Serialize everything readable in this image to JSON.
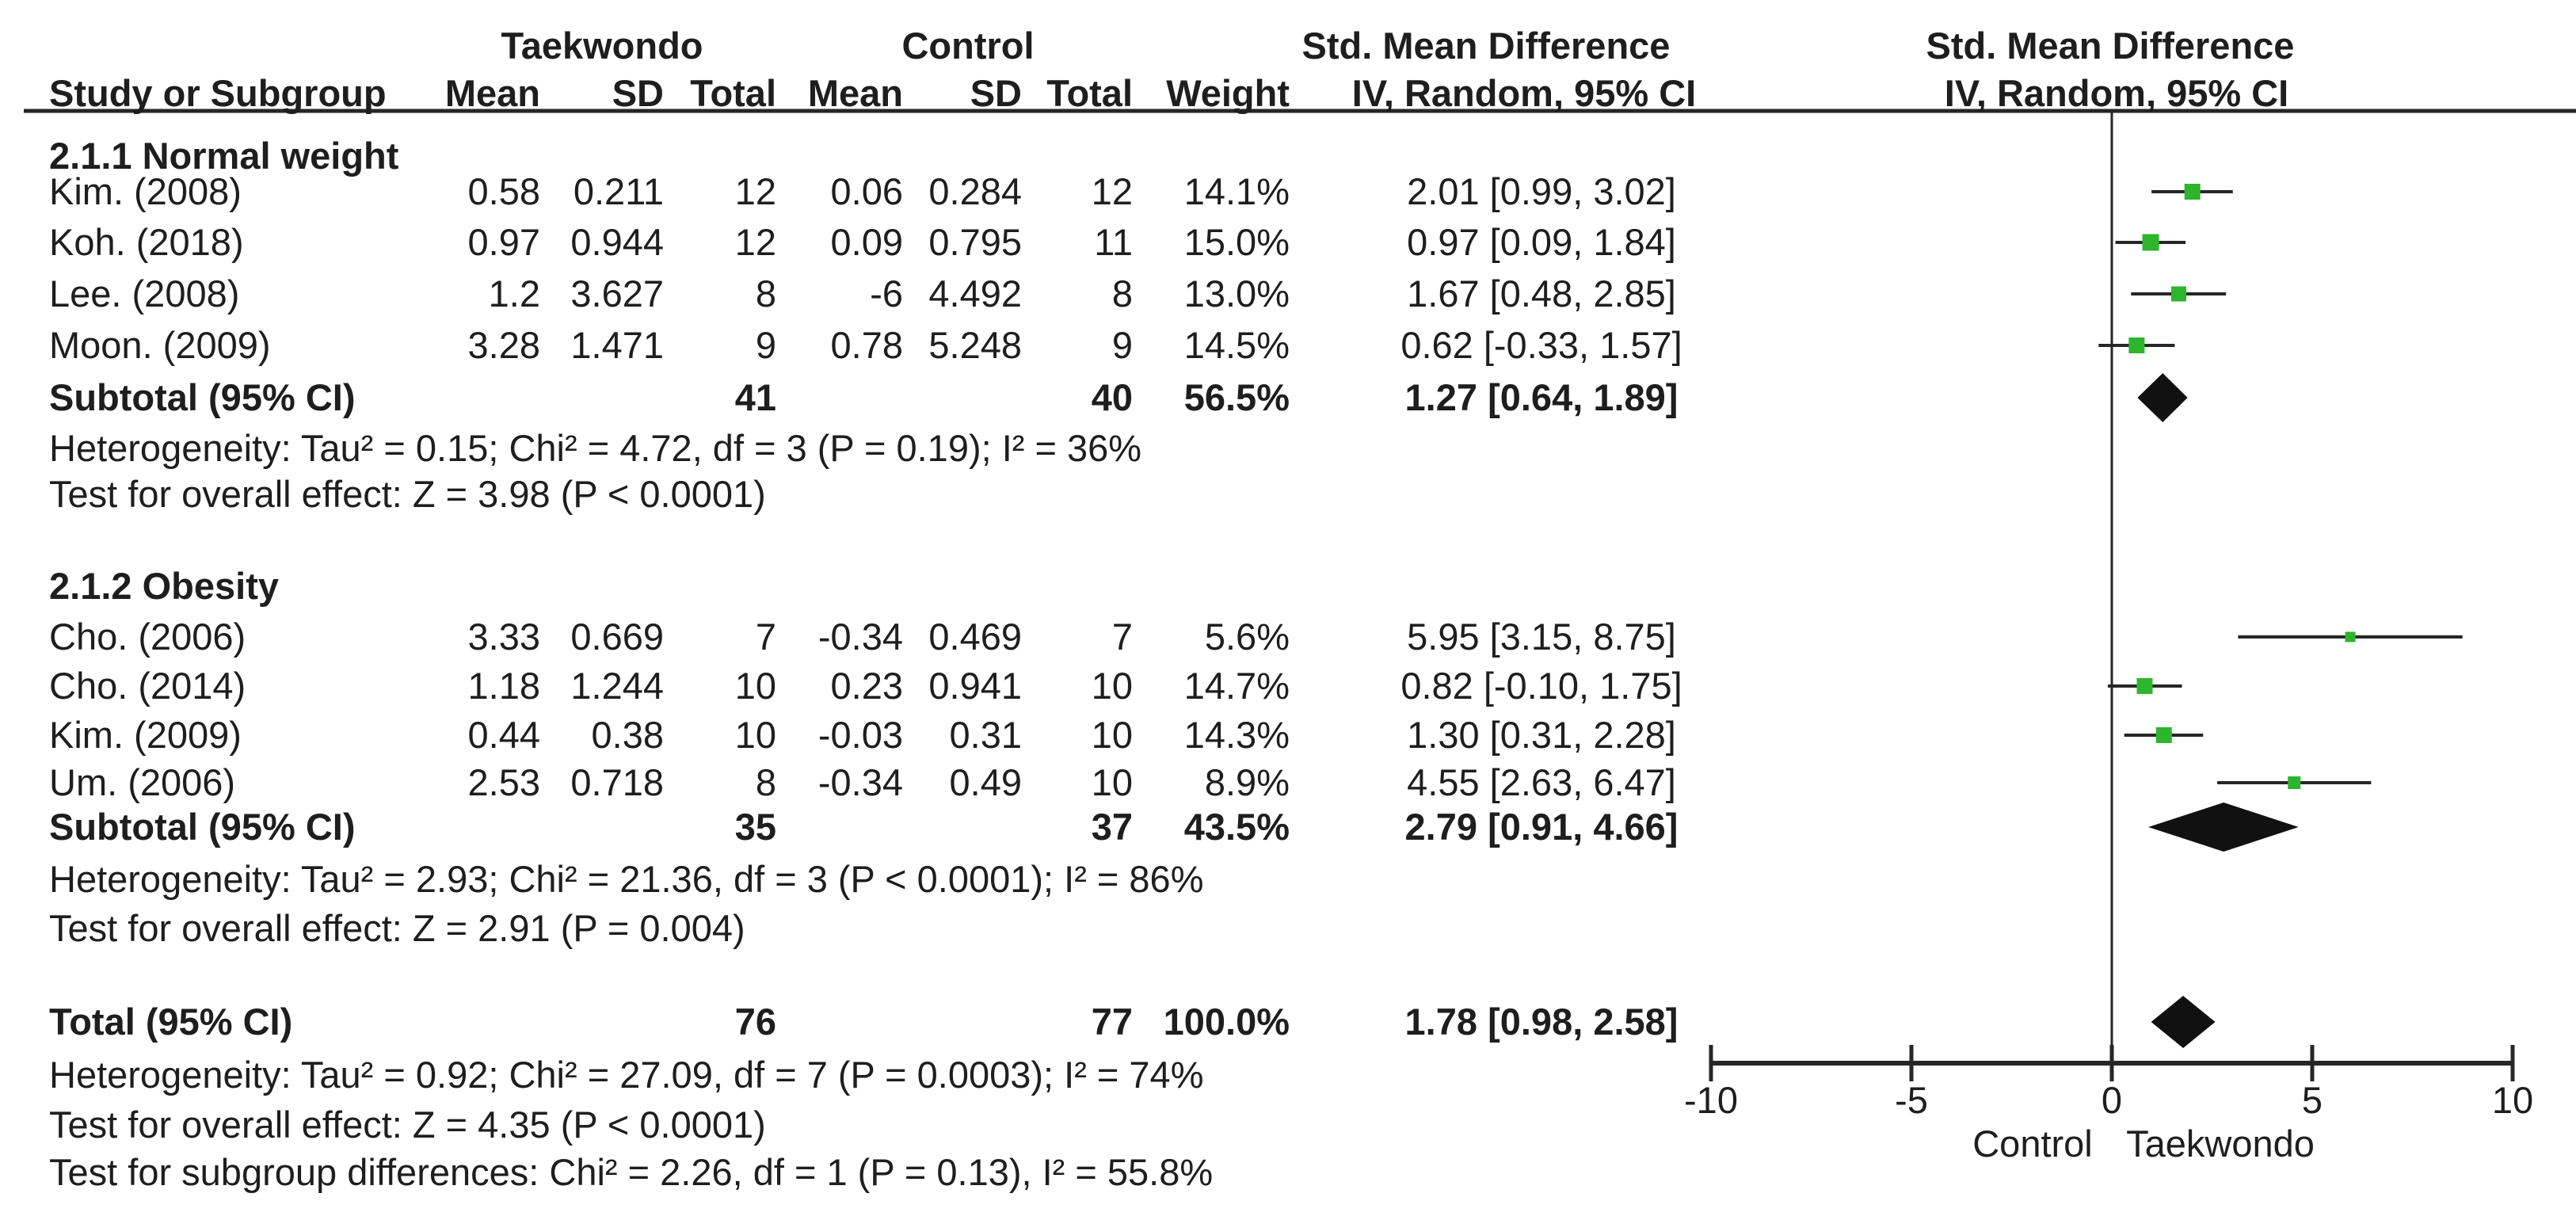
{
  "header": {
    "taekwondo": "Taekwondo",
    "control": "Control",
    "smd_left": "Std. Mean Difference",
    "smd_right": "Std. Mean Difference",
    "study": "Study or Subgroup",
    "mean_t": "Mean",
    "sd_t": "SD",
    "total_t": "Total",
    "mean_c": "Mean",
    "sd_c": "SD",
    "total_c": "Total",
    "weight": "Weight",
    "iv_left": "IV, Random, 95% CI",
    "iv_right": "IV, Random, 95% CI"
  },
  "chart_data": {
    "type": "forest",
    "effect_measure": "Std. Mean Difference",
    "model": "IV, Random, 95% CI",
    "axis": {
      "min": -10,
      "max": 10,
      "ticks": [
        -10,
        -5,
        0,
        5,
        10
      ],
      "left_label": "Control",
      "right_label": "Taekwondo"
    },
    "groups": [
      {
        "label": "2.1.1 Normal weight",
        "studies": [
          {
            "study": "Kim. (2008)",
            "t_mean": "0.58",
            "t_sd": "0.211",
            "t_total": "12",
            "c_mean": "0.06",
            "c_sd": "0.284",
            "c_total": "12",
            "weight": "14.1%",
            "ci_text": "2.01 [0.99, 3.02]",
            "est": 2.01,
            "lo": 0.99,
            "hi": 3.02,
            "weight_pct": 14.1
          },
          {
            "study": "Koh. (2018)",
            "t_mean": "0.97",
            "t_sd": "0.944",
            "t_total": "12",
            "c_mean": "0.09",
            "c_sd": "0.795",
            "c_total": "11",
            "weight": "15.0%",
            "ci_text": "0.97 [0.09, 1.84]",
            "est": 0.97,
            "lo": 0.09,
            "hi": 1.84,
            "weight_pct": 15.0
          },
          {
            "study": "Lee. (2008)",
            "t_mean": "1.2",
            "t_sd": "3.627",
            "t_total": "8",
            "c_mean": "-6",
            "c_sd": "4.492",
            "c_total": "8",
            "weight": "13.0%",
            "ci_text": "1.67 [0.48, 2.85]",
            "est": 1.67,
            "lo": 0.48,
            "hi": 2.85,
            "weight_pct": 13.0
          },
          {
            "study": "Moon. (2009)",
            "t_mean": "3.28",
            "t_sd": "1.471",
            "t_total": "9",
            "c_mean": "0.78",
            "c_sd": "5.248",
            "c_total": "9",
            "weight": "14.5%",
            "ci_text": "0.62 [-0.33, 1.57]",
            "est": 0.62,
            "lo": -0.33,
            "hi": 1.57,
            "weight_pct": 14.5
          }
        ],
        "subtotal": {
          "label": "Subtotal (95% CI)",
          "t_total": "41",
          "c_total": "40",
          "weight": "56.5%",
          "ci_text": "1.27 [0.64, 1.89]",
          "est": 1.27,
          "lo": 0.64,
          "hi": 1.89
        },
        "heterogeneity": "Heterogeneity: Tau² = 0.15; Chi² = 4.72, df = 3 (P = 0.19); I² = 36%",
        "overall_effect": "Test for overall effect: Z = 3.98 (P < 0.0001)"
      },
      {
        "label": "2.1.2 Obesity",
        "studies": [
          {
            "study": "Cho. (2006)",
            "t_mean": "3.33",
            "t_sd": "0.669",
            "t_total": "7",
            "c_mean": "-0.34",
            "c_sd": "0.469",
            "c_total": "7",
            "weight": "5.6%",
            "ci_text": "5.95 [3.15, 8.75]",
            "est": 5.95,
            "lo": 3.15,
            "hi": 8.75,
            "weight_pct": 5.6
          },
          {
            "study": "Cho. (2014)",
            "t_mean": "1.18",
            "t_sd": "1.244",
            "t_total": "10",
            "c_mean": "0.23",
            "c_sd": "0.941",
            "c_total": "10",
            "weight": "14.7%",
            "ci_text": "0.82 [-0.10, 1.75]",
            "est": 0.82,
            "lo": -0.1,
            "hi": 1.75,
            "weight_pct": 14.7
          },
          {
            "study": "Kim. (2009)",
            "t_mean": "0.44",
            "t_sd": "0.38",
            "t_total": "10",
            "c_mean": "-0.03",
            "c_sd": "0.31",
            "c_total": "10",
            "weight": "14.3%",
            "ci_text": "1.30 [0.31, 2.28]",
            "est": 1.3,
            "lo": 0.31,
            "hi": 2.28,
            "weight_pct": 14.3
          },
          {
            "study": "Um. (2006)",
            "t_mean": "2.53",
            "t_sd": "0.718",
            "t_total": "8",
            "c_mean": "-0.34",
            "c_sd": "0.49",
            "c_total": "10",
            "weight": "8.9%",
            "ci_text": "4.55 [2.63, 6.47]",
            "est": 4.55,
            "lo": 2.63,
            "hi": 6.47,
            "weight_pct": 8.9
          }
        ],
        "subtotal": {
          "label": "Subtotal (95% CI)",
          "t_total": "35",
          "c_total": "37",
          "weight": "43.5%",
          "ci_text": "2.79 [0.91, 4.66]",
          "est": 2.79,
          "lo": 0.91,
          "hi": 4.66
        },
        "heterogeneity": "Heterogeneity: Tau² = 2.93; Chi² = 21.36, df = 3 (P < 0.0001); I² = 86%",
        "overall_effect": "Test for overall effect: Z = 2.91 (P = 0.004)"
      }
    ],
    "total": {
      "label": "Total (95% CI)",
      "t_total": "76",
      "c_total": "77",
      "weight": "100.0%",
      "ci_text": "1.78 [0.98, 2.58]",
      "est": 1.78,
      "lo": 0.98,
      "hi": 2.58
    },
    "total_heterogeneity": "Heterogeneity: Tau² = 0.92; Chi² = 27.09, df = 7 (P = 0.0003); I² = 74%",
    "total_effect": "Test for overall effect: Z = 4.35 (P < 0.0001)",
    "subgroup_differences": "Test for subgroup differences: Chi² = 2.26, df = 1 (P = 0.13), I² = 55.8%"
  },
  "colors": {
    "marker_green": "#2db52d",
    "diamond_black": "#111111",
    "ink": "#1e1e1e",
    "line": "#262626"
  }
}
